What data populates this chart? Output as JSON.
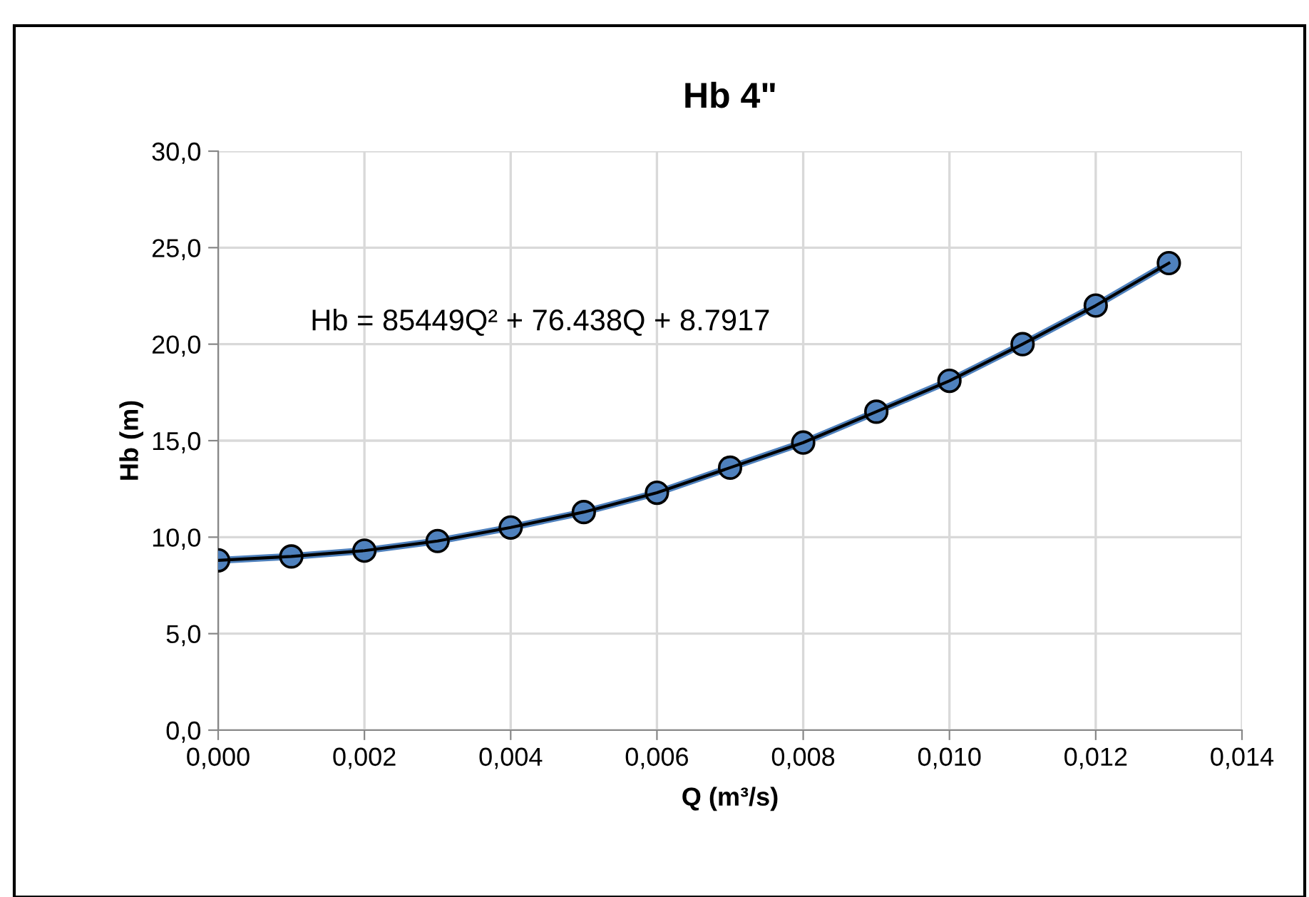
{
  "chart_data": {
    "type": "line",
    "title": "Hb 4\"",
    "xlabel": "Q (m³/s)",
    "ylabel": "Hb (m)",
    "x": [
      0,
      0.001,
      0.002,
      0.003,
      0.004,
      0.005,
      0.006,
      0.007,
      0.008,
      0.009,
      0.01,
      0.011,
      0.012,
      0.013
    ],
    "series": [
      {
        "color": "#4f81bd",
        "marker": "circle",
        "values": [
          8.8,
          9.0,
          9.3,
          9.8,
          10.5,
          11.3,
          12.3,
          13.6,
          14.9,
          16.5,
          18.1,
          20.0,
          22.0,
          24.2
        ]
      },
      {
        "color": "#000000",
        "marker": "none",
        "values": [
          8.8,
          9.0,
          9.3,
          9.8,
          10.5,
          11.3,
          12.3,
          13.6,
          14.9,
          16.5,
          18.1,
          20.0,
          22.0,
          24.2
        ]
      }
    ],
    "annotations": [
      "Hb = 85449Q² + 76.438Q + 8.7917"
    ],
    "xlim": [
      0,
      0.014
    ],
    "ylim": [
      0,
      30
    ],
    "xticks": [
      {
        "value": 0,
        "label": "0,000"
      },
      {
        "value": 0.002,
        "label": "0,002"
      },
      {
        "value": 0.004,
        "label": "0,004"
      },
      {
        "value": 0.006,
        "label": "0,006"
      },
      {
        "value": 0.008,
        "label": "0,008"
      },
      {
        "value": 0.01,
        "label": "0,010"
      },
      {
        "value": 0.012,
        "label": "0,012"
      },
      {
        "value": 0.014,
        "label": "0,014"
      }
    ],
    "yticks": [
      {
        "value": 0,
        "label": "0,0"
      },
      {
        "value": 5,
        "label": "5,0"
      },
      {
        "value": 10,
        "label": "10,0"
      },
      {
        "value": 15,
        "label": "15,0"
      },
      {
        "value": 20,
        "label": "20,0"
      },
      {
        "value": 25,
        "label": "25,0"
      },
      {
        "value": 30,
        "label": "30,0"
      }
    ],
    "grid": true,
    "legend": false
  }
}
